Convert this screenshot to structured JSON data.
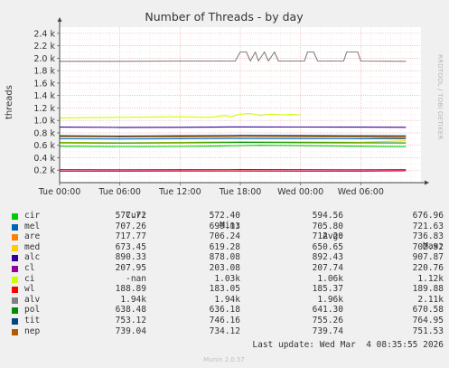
{
  "chart_data": {
    "type": "line",
    "title": "Number of Threads - by day",
    "ylabel": "threads",
    "side_label": "RRDTOOL / TOBI OETIKER",
    "xlim": [
      0,
      36
    ],
    "ylim": [
      0,
      2500
    ],
    "grid": true,
    "y_ticks": [
      200,
      400,
      600,
      800,
      1000,
      1200,
      1400,
      1600,
      1800,
      2000,
      2200,
      2400
    ],
    "y_tick_labels": [
      "0.2 k",
      "0.4 k",
      "0.6 k",
      "0.8 k",
      "1.0 k",
      "1.2 k",
      "1.4 k",
      "1.6 k",
      "1.8 k",
      "2.0 k",
      "2.2 k",
      "2.4 k"
    ],
    "x_ticks": [
      0,
      6,
      12,
      18,
      24,
      30
    ],
    "x_tick_labels": [
      "Tue 00:00",
      "Tue 06:00",
      "Tue 12:00",
      "Tue 18:00",
      "Wed 00:00",
      "Wed 06:00"
    ],
    "series": [
      {
        "name": "cir",
        "color": "#00cc00",
        "x": [
          0,
          4,
          8,
          12,
          16,
          20,
          24,
          28,
          32,
          34.5
        ],
        "y": [
          585,
          580,
          578,
          582,
          590,
          600,
          595,
          588,
          580,
          578
        ]
      },
      {
        "name": "mel",
        "color": "#0066b3",
        "x": [
          0,
          6,
          12,
          18,
          24,
          30,
          34.5
        ],
        "y": [
          705,
          702,
          706,
          710,
          708,
          706,
          707
        ]
      },
      {
        "name": "are",
        "color": "#ff8000",
        "x": [
          0,
          6,
          12,
          18,
          24,
          30,
          34.5
        ],
        "y": [
          738,
          735,
          736,
          740,
          738,
          736,
          718
        ]
      },
      {
        "name": "med",
        "color": "#ffcc00",
        "x": [
          0,
          6,
          12,
          18,
          24,
          30,
          34.5
        ],
        "y": [
          650,
          640,
          648,
          660,
          655,
          650,
          673
        ]
      },
      {
        "name": "alc",
        "color": "#330099",
        "x": [
          0,
          6,
          12,
          18,
          24,
          30,
          34.5
        ],
        "y": [
          892,
          888,
          890,
          896,
          894,
          892,
          890
        ]
      },
      {
        "name": "cl",
        "color": "#990099",
        "x": [
          0,
          6,
          12,
          18,
          24,
          30,
          34.5
        ],
        "y": [
          208,
          207,
          208,
          209,
          208,
          207,
          208
        ]
      },
      {
        "name": "ci",
        "color": "#ccff00",
        "x": [
          0,
          6,
          12,
          15,
          16.5,
          17,
          18,
          19,
          20,
          21,
          22,
          23,
          24
        ],
        "y": [
          1040,
          1050,
          1060,
          1050,
          1080,
          1060,
          1100,
          1110,
          1080,
          1100,
          1090,
          1095,
          1090
        ]
      },
      {
        "name": "wl",
        "color": "#ff0000",
        "x": [
          0,
          6,
          12,
          18,
          24,
          30,
          34.5
        ],
        "y": [
          185,
          185,
          186,
          186,
          185,
          185,
          189
        ]
      },
      {
        "name": "alv",
        "color": "#808080",
        "x": [
          0,
          6,
          12,
          17.5,
          18,
          18.6,
          19,
          19.5,
          19.8,
          20.4,
          20.8,
          21.4,
          21.8,
          24.4,
          24.7,
          25.3,
          25.7,
          28.3,
          28.6,
          29.7,
          30,
          34.5
        ],
        "y": [
          1950,
          1950,
          1955,
          1955,
          2100,
          2100,
          1955,
          2100,
          1955,
          2100,
          1955,
          2100,
          1955,
          1955,
          2100,
          2100,
          1955,
          1955,
          2100,
          2100,
          1955,
          1950
        ]
      },
      {
        "name": "pol",
        "color": "#008f00",
        "x": [
          0,
          6,
          12,
          18,
          24,
          30,
          34.5
        ],
        "y": [
          640,
          636,
          640,
          645,
          642,
          640,
          638
        ]
      },
      {
        "name": "tit",
        "color": "#00487d",
        "x": [
          0,
          6,
          12,
          18,
          24,
          30,
          34.5
        ],
        "y": [
          755,
          750,
          756,
          760,
          758,
          755,
          753
        ]
      },
      {
        "name": "nep",
        "color": "#b35a00",
        "x": [
          0,
          6,
          12,
          18,
          24,
          30,
          34.5
        ],
        "y": [
          740,
          736,
          740,
          742,
          740,
          739,
          739
        ]
      }
    ]
  },
  "legend": {
    "headers": {
      "cur": "Cur:",
      "min": "Min:",
      "avg": "Avg:",
      "max": "Max:"
    },
    "rows": [
      {
        "name": "cir",
        "color": "#00cc00",
        "cur": "577.72",
        "min": "572.40",
        "avg": "594.56",
        "max": "676.96"
      },
      {
        "name": "mel",
        "color": "#0066b3",
        "cur": "707.26",
        "min": "699.13",
        "avg": "705.80",
        "max": "721.63"
      },
      {
        "name": "are",
        "color": "#ff8000",
        "cur": "717.77",
        "min": "706.24",
        "avg": "712.20",
        "max": "736.83"
      },
      {
        "name": "med",
        "color": "#ffcc00",
        "cur": "673.45",
        "min": "619.28",
        "avg": "650.65",
        "max": "702.92"
      },
      {
        "name": "alc",
        "color": "#330099",
        "cur": "890.33",
        "min": "878.08",
        "avg": "892.43",
        "max": "907.87"
      },
      {
        "name": "cl",
        "color": "#990099",
        "cur": "207.95",
        "min": "203.08",
        "avg": "207.74",
        "max": "220.76"
      },
      {
        "name": "ci",
        "color": "#ccff00",
        "cur": "-nan",
        "min": "1.03k",
        "avg": "1.06k",
        "max": "1.12k"
      },
      {
        "name": "wl",
        "color": "#ff0000",
        "cur": "188.89",
        "min": "183.05",
        "avg": "185.37",
        "max": "189.88"
      },
      {
        "name": "alv",
        "color": "#808080",
        "cur": "1.94k",
        "min": "1.94k",
        "avg": "1.96k",
        "max": "2.11k"
      },
      {
        "name": "pol",
        "color": "#008f00",
        "cur": "638.48",
        "min": "636.18",
        "avg": "641.30",
        "max": "670.58"
      },
      {
        "name": "tit",
        "color": "#00487d",
        "cur": "753.12",
        "min": "746.16",
        "avg": "755.26",
        "max": "764.95"
      },
      {
        "name": "nep",
        "color": "#b35a00",
        "cur": "739.04",
        "min": "734.12",
        "avg": "739.74",
        "max": "751.53"
      }
    ],
    "last_update": "Last update: Wed Mar  4 08:35:55 2026"
  },
  "footer": "Munin 2.0.57"
}
